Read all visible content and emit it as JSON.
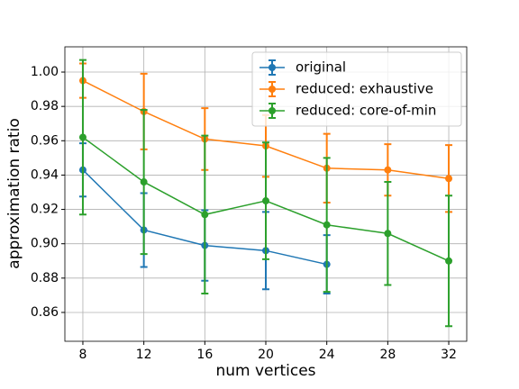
{
  "chart_data": {
    "type": "errorbar_line",
    "xlabel": "num vertices",
    "ylabel": "approximation  ratio",
    "xlim": [
      6.82,
      33.18
    ],
    "ylim": [
      0.8432,
      1.0147
    ],
    "xticks": [
      8,
      12,
      16,
      20,
      24,
      28,
      32
    ],
    "yticks": [
      0.86,
      0.88,
      {
        "value": 0.9,
        "label": "0.90"
      },
      0.92,
      0.94,
      0.96,
      0.98,
      {
        "value": 1.0,
        "label": "1.00"
      }
    ],
    "grid": true,
    "legend": "upper right",
    "series": [
      {
        "name": "original",
        "color": "#1f77b4",
        "x": [
          8,
          12,
          16,
          20,
          24
        ],
        "values": [
          0.943,
          0.908,
          0.899,
          0.896,
          0.888
        ],
        "errors": [
          0.0155,
          0.0215,
          0.0205,
          0.0225,
          0.017
        ]
      },
      {
        "name": "reduced: exhaustive",
        "color": "#ff7f0e",
        "x": [
          8,
          12,
          16,
          20,
          24,
          28,
          32
        ],
        "values": [
          0.995,
          0.977,
          0.961,
          0.957,
          0.944,
          0.943,
          0.938
        ],
        "errors": [
          0.01,
          0.022,
          0.018,
          0.018,
          0.02,
          0.015,
          0.0195
        ]
      },
      {
        "name": "reduced: core-of-min",
        "color": "#2ca02c",
        "x": [
          8,
          12,
          16,
          20,
          24,
          28,
          32
        ],
        "values": [
          0.962,
          0.936,
          0.917,
          0.925,
          0.911,
          0.906,
          0.89
        ],
        "errors": [
          0.045,
          0.042,
          0.046,
          0.034,
          0.039,
          0.03,
          0.038
        ]
      }
    ]
  }
}
